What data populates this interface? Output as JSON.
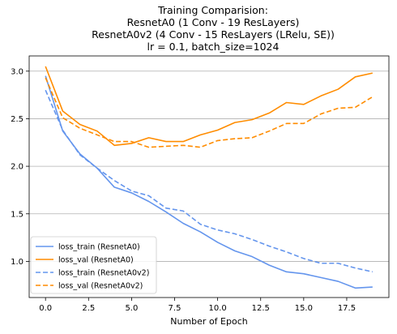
{
  "chart_data": {
    "type": "line",
    "title_lines": [
      "Training Comparision:",
      "ResnetA0 (1 Conv - 19 ResLayers)",
      "ResnetA0v2 (4 Conv - 15 ResLayers (LRelu, SE))",
      "lr = 0.1, batch_size=1024"
    ],
    "xlabel": "Number of Epoch",
    "ylabel": "",
    "xlim": [
      -0.95,
      19.95
    ],
    "ylim": [
      0.62,
      3.16
    ],
    "xticks": [
      0.0,
      2.5,
      5.0,
      7.5,
      10.0,
      12.5,
      15.0,
      17.5
    ],
    "xtick_labels": [
      "0.0",
      "2.5",
      "5.0",
      "7.5",
      "10.0",
      "12.5",
      "15.0",
      "17.5"
    ],
    "yticks": [
      1.0,
      1.5,
      2.0,
      2.5,
      3.0
    ],
    "ytick_labels": [
      "1.0",
      "1.5",
      "2.0",
      "2.5",
      "3.0"
    ],
    "grid": "horizontal",
    "legend_position": "lower-left",
    "x": [
      0,
      1,
      2,
      3,
      4,
      5,
      6,
      7,
      8,
      9,
      10,
      11,
      12,
      13,
      14,
      15,
      16,
      17,
      18,
      19
    ],
    "series": [
      {
        "name": "loss_train (ResnetA0)",
        "color": "#6495ed",
        "style": "solid",
        "values": [
          2.95,
          2.37,
          2.13,
          1.98,
          1.78,
          1.72,
          1.63,
          1.52,
          1.4,
          1.31,
          1.2,
          1.11,
          1.05,
          0.96,
          0.89,
          0.87,
          0.83,
          0.79,
          0.72,
          0.73
        ]
      },
      {
        "name": "loss_val (ResnetA0)",
        "color": "#ff8c00",
        "style": "solid",
        "values": [
          3.05,
          2.58,
          2.44,
          2.37,
          2.22,
          2.24,
          2.3,
          2.26,
          2.26,
          2.33,
          2.38,
          2.46,
          2.49,
          2.56,
          2.67,
          2.65,
          2.74,
          2.81,
          2.94,
          2.98
        ]
      },
      {
        "name": "loss_train (ResnetA0v2)",
        "color": "#6495ed",
        "style": "dashed",
        "values": [
          2.8,
          2.38,
          2.12,
          1.98,
          1.85,
          1.74,
          1.69,
          1.56,
          1.53,
          1.39,
          1.33,
          1.29,
          1.23,
          1.16,
          1.1,
          1.03,
          0.98,
          0.98,
          0.93,
          0.89
        ]
      },
      {
        "name": "loss_val (ResnetA0v2)",
        "color": "#ff8c00",
        "style": "dashed",
        "values": [
          2.93,
          2.51,
          2.4,
          2.33,
          2.26,
          2.26,
          2.2,
          2.21,
          2.22,
          2.2,
          2.27,
          2.29,
          2.3,
          2.37,
          2.45,
          2.45,
          2.55,
          2.61,
          2.62,
          2.73
        ]
      }
    ]
  }
}
